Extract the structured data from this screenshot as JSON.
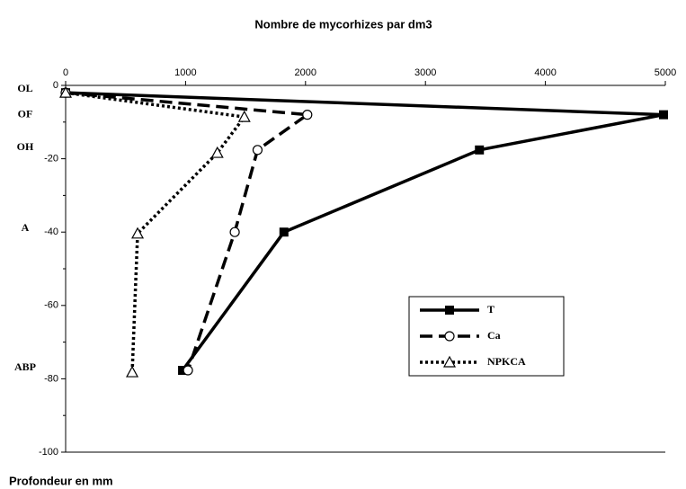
{
  "chart_data": {
    "type": "line",
    "title": "Nombre de mycorhizes par dm3",
    "ylabel": "Profondeur en mm",
    "xlim": [
      0,
      5000
    ],
    "xticks": [
      0,
      1000,
      2000,
      3000,
      4000,
      5000
    ],
    "ylim": [
      -100,
      0
    ],
    "yticks": [
      0,
      -20,
      -40,
      -60,
      -80,
      -100
    ],
    "yminorticks": [
      -10,
      -30,
      -50,
      -70,
      -90
    ],
    "horizons": [
      {
        "label": "OL",
        "depth": -1
      },
      {
        "label": "OF",
        "depth": -8
      },
      {
        "label": "OH",
        "depth": -17
      },
      {
        "label": "A",
        "depth": -39
      },
      {
        "label": "ABP",
        "depth": -77
      }
    ],
    "series": [
      {
        "name": "T",
        "color": "#000000",
        "line_style": "solid",
        "marker": "square",
        "x": [
          0,
          4985,
          3450,
          1820,
          975
        ],
        "values": [
          -2,
          -8,
          -17.6,
          -40,
          -77.7
        ]
      },
      {
        "name": "Ca",
        "color": "#000000",
        "line_style": "dashed",
        "marker": "circle",
        "x": [
          0,
          2015,
          1600,
          1410,
          1020
        ],
        "values": [
          -2,
          -8,
          -17.6,
          -40,
          -77.7
        ]
      },
      {
        "name": "NPKCA",
        "color": "#000000",
        "line_style": "dotted",
        "marker": "triangle",
        "x": [
          0,
          1490,
          1265,
          600,
          555
        ],
        "values": [
          -2,
          -8.6,
          -18.4,
          -40.4,
          -78.2
        ]
      }
    ]
  }
}
